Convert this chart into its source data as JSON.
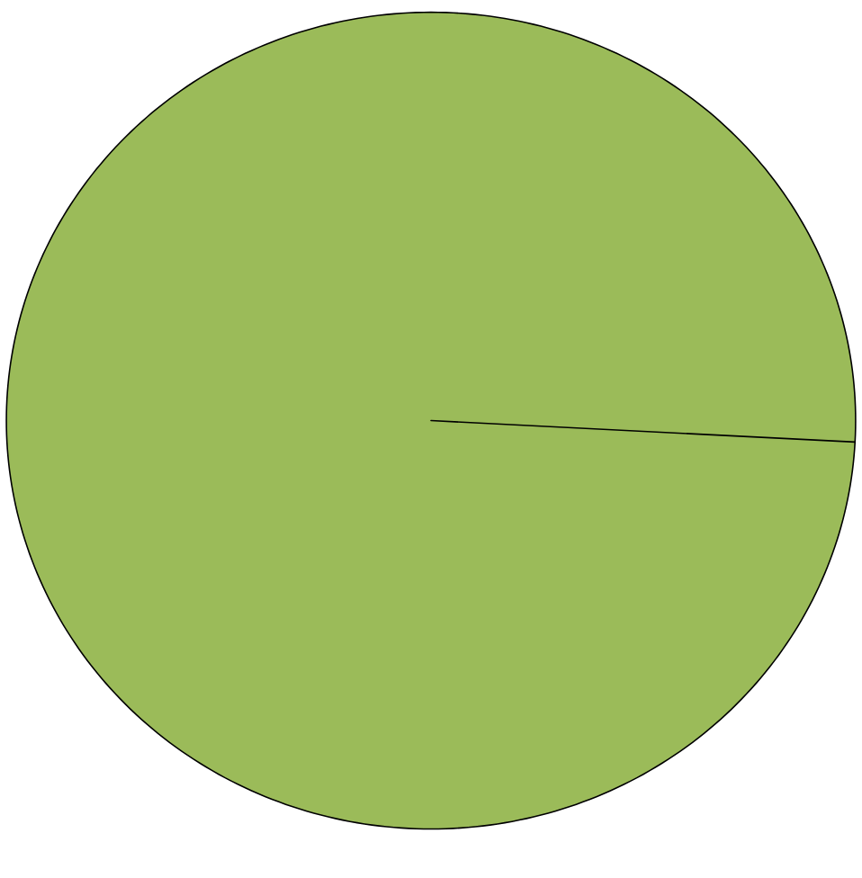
{
  "chart_data": {
    "type": "pie",
    "categories": [
      null
    ],
    "values": [
      100
    ],
    "colors": [
      "#9bbb59"
    ]
  }
}
